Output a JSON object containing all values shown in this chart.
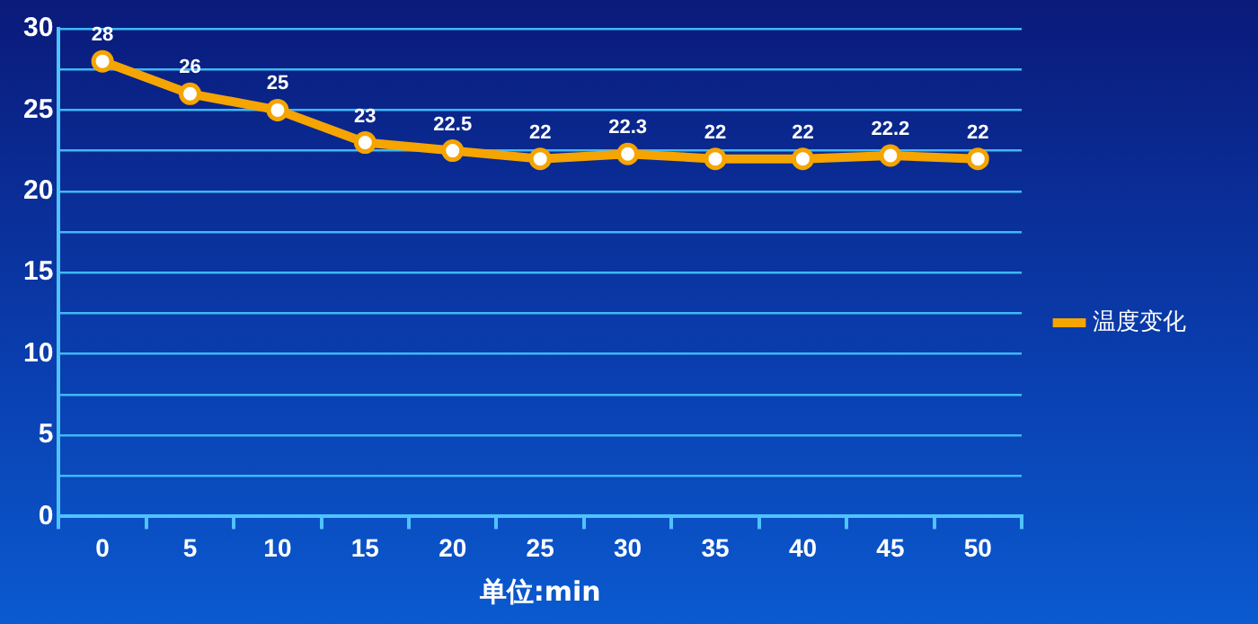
{
  "chart_data": {
    "type": "line",
    "xlabel": "单位:min",
    "categories": [
      "0",
      "5",
      "10",
      "15",
      "20",
      "25",
      "30",
      "35",
      "40",
      "45",
      "50"
    ],
    "series": [
      {
        "name": "温度变化",
        "color": "#f5a400",
        "values": [
          28,
          26,
          25,
          23,
          22.5,
          22,
          22.3,
          22,
          22,
          22.2,
          22
        ]
      }
    ],
    "ylim": [
      0,
      30
    ],
    "yticks": [
      0,
      {
        "value": 2.5,
        "label": null
      },
      5,
      {
        "value": 7.5,
        "label": null
      },
      10,
      {
        "value": 12.5,
        "label": null
      },
      15,
      {
        "value": 17.5,
        "label": null
      },
      20,
      {
        "value": 22.5,
        "label": null
      },
      25,
      {
        "value": 27.5,
        "label": null
      },
      30
    ],
    "grid": "y",
    "legend": "right",
    "marker": "circle",
    "line_style": "solid",
    "data_labels": true
  }
}
